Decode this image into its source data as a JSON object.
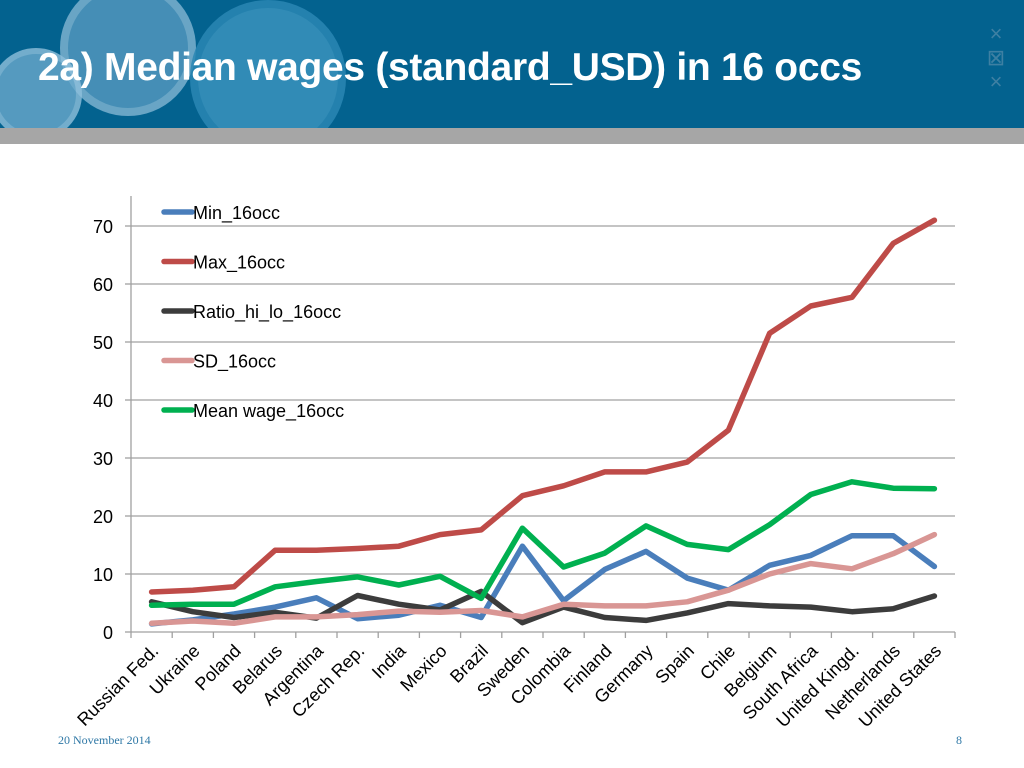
{
  "slide": {
    "title": "2a) Median wages (standard_USD) in 16 occs",
    "footer_date": "20 November 2014",
    "page_number": "8",
    "colors": {
      "header_bg": "#03628f",
      "band": "#a6a6a6",
      "footer_text": "#2f78a6"
    }
  },
  "chart_data": {
    "type": "line",
    "title": "",
    "xlabel": "",
    "ylabel": "",
    "ylim": [
      0,
      75
    ],
    "yticks": [
      0,
      10,
      20,
      30,
      40,
      50,
      60,
      70
    ],
    "grid": true,
    "legend_position": "top-left",
    "categories": [
      "Russian Fed.",
      "Ukraine",
      "Poland",
      "Belarus",
      "Argentina",
      "Czech Rep.",
      "India",
      "Mexico",
      "Brazil",
      "Sweden",
      "Colombia",
      "Finland",
      "Germany",
      "Spain",
      "Chile",
      "Belgium",
      "South Africa",
      "United Kingd.",
      "Netherlands",
      "United States"
    ],
    "series": [
      {
        "name": "Min_16occc",
        "label": "Min_16occ",
        "color": "#4a7ebb",
        "values": [
          1.4,
          2.1,
          3.1,
          4.3,
          5.9,
          2.3,
          2.9,
          4.6,
          2.5,
          14.8,
          5.4,
          10.8,
          13.9,
          9.3,
          7.2,
          11.5,
          13.2,
          16.6,
          16.6,
          11.3
        ]
      },
      {
        "name": "Max_16occ",
        "label": "Max_16occ",
        "color": "#be4b48",
        "values": [
          6.9,
          7.2,
          7.8,
          14.1,
          14.1,
          14.4,
          14.8,
          16.8,
          17.6,
          23.5,
          25.2,
          27.6,
          27.6,
          29.3,
          34.8,
          51.5,
          56.2,
          57.7,
          67.0,
          71.0
        ]
      },
      {
        "name": "Ratio_hi_lo_16occ",
        "label": "Ratio_hi_lo_16occ",
        "color": "#3c3c3c",
        "values": [
          5.2,
          3.5,
          2.5,
          3.4,
          2.4,
          6.3,
          4.8,
          3.8,
          7.0,
          1.6,
          4.3,
          2.5,
          2.0,
          3.3,
          4.9,
          4.5,
          4.3,
          3.5,
          4.0,
          6.2
        ]
      },
      {
        "name": "SD_16occ",
        "label": "SD_16occ",
        "color": "#d99694",
        "values": [
          1.5,
          1.9,
          1.5,
          2.6,
          2.6,
          3.0,
          3.6,
          3.4,
          3.7,
          2.6,
          4.8,
          4.5,
          4.5,
          5.2,
          7.2,
          10.0,
          11.8,
          10.9,
          13.5,
          16.8
        ]
      },
      {
        "name": "Mean wage_16occ",
        "label": "Mean wage_16occ",
        "color": "#00b050",
        "values": [
          4.6,
          4.8,
          4.8,
          7.8,
          8.7,
          9.5,
          8.1,
          9.6,
          5.8,
          17.9,
          11.2,
          13.6,
          18.3,
          15.1,
          14.2,
          18.5,
          23.7,
          25.9,
          24.8,
          24.7
        ]
      }
    ]
  }
}
